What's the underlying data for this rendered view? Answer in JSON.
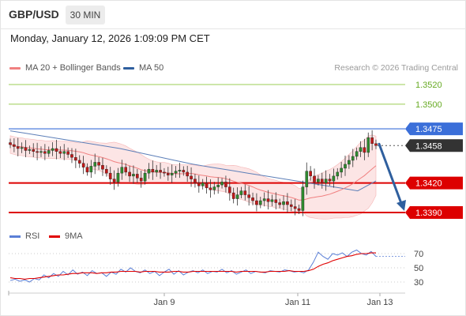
{
  "header": {
    "symbol": "GBP/USD",
    "timeframe": "30 MIN",
    "datetime": "Monday, January 12, 2026 1:09:09 PM CET",
    "credit": "Research © 2026 Trading Central"
  },
  "legend": {
    "ma20_label": "MA 20 + Bollinger Bands",
    "ma50_label": "MA 50",
    "ma20_color": "#f08080",
    "ma50_color": "#2f5f9e"
  },
  "rsi_legend": {
    "rsi_label": "RSI",
    "ma9_label": "9MA",
    "rsi_color": "#5b7fd6",
    "ma9_color": "#e00000"
  },
  "colors": {
    "resistance": "#66aa22",
    "pivot": "#3b6fd9",
    "support": "#dd0000",
    "current": "#333333",
    "arrow": "#2f5f9e",
    "bollinger_fill": "#fbdcdc"
  },
  "chart_data": {
    "type": "candlestick",
    "x_ticks": [
      "Jan 9",
      "Jan 11",
      "Jan 13"
    ],
    "levels": [
      {
        "name": "resistance-2",
        "value": 1.352,
        "label": "1.3520",
        "style": "resistance"
      },
      {
        "name": "resistance-1",
        "value": 1.35,
        "label": "1.3500",
        "style": "resistance"
      },
      {
        "name": "pivot",
        "value": 1.3475,
        "label": "1.3475",
        "style": "pivot"
      },
      {
        "name": "current-price",
        "value": 1.3458,
        "label": "1.3458",
        "style": "current"
      },
      {
        "name": "support-1",
        "value": 1.342,
        "label": "1.3420",
        "style": "support"
      },
      {
        "name": "support-2",
        "value": 1.339,
        "label": "1.3390",
        "style": "support"
      }
    ],
    "closes": [
      1.3459,
      1.3457,
      1.3455,
      1.3456,
      1.3453,
      1.3454,
      1.3452,
      1.3451,
      1.3452,
      1.345,
      1.3453,
      1.3455,
      1.3452,
      1.345,
      1.3452,
      1.3449,
      1.3446,
      1.3443,
      1.344,
      1.3436,
      1.3431,
      1.3437,
      1.3441,
      1.3438,
      1.3434,
      1.343,
      1.3424,
      1.3421,
      1.343,
      1.3436,
      1.3431,
      1.3427,
      1.3429,
      1.3425,
      1.3422,
      1.343,
      1.3434,
      1.3431,
      1.3433,
      1.3431,
      1.343,
      1.3428,
      1.343,
      1.3432,
      1.3433,
      1.3431,
      1.3427,
      1.3424,
      1.342,
      1.3417,
      1.342,
      1.3415,
      1.3413,
      1.3416,
      1.3418,
      1.3421,
      1.3416,
      1.341,
      1.3404,
      1.3408,
      1.3412,
      1.3408,
      1.3405,
      1.3402,
      1.3398,
      1.3402,
      1.3404,
      1.3401,
      1.3403,
      1.34,
      1.3398,
      1.3401,
      1.3398,
      1.3396,
      1.3394,
      1.3392,
      1.3416,
      1.3432,
      1.3427,
      1.3421,
      1.3424,
      1.342,
      1.3424,
      1.3422,
      1.3427,
      1.3431,
      1.3435,
      1.3439,
      1.3443,
      1.3447,
      1.3452,
      1.3456,
      1.3451,
      1.3466,
      1.346,
      1.3458
    ],
    "ma50": [
      1.3473,
      1.347,
      1.3467,
      1.3464,
      1.3461,
      1.3458,
      1.3455,
      1.3451,
      1.3447,
      1.3443,
      1.3439,
      1.3436,
      1.3433,
      1.343,
      1.3427,
      1.3424,
      1.3421,
      1.3418,
      1.3415,
      1.3412,
      1.3422
    ],
    "rsi": {
      "levels": [
        70,
        50,
        30
      ],
      "rsi": [
        32,
        34,
        31,
        33,
        30,
        35,
        33,
        40,
        36,
        42,
        38,
        45,
        40,
        47,
        41,
        44,
        39,
        46,
        42,
        43,
        38,
        44,
        41,
        48,
        44,
        50,
        45,
        43,
        47,
        42,
        45,
        39,
        44,
        48,
        41,
        46,
        40,
        44,
        46,
        43,
        47,
        42,
        45,
        44,
        48,
        43,
        46,
        41,
        44,
        47,
        42,
        45,
        44,
        43,
        46,
        45,
        44,
        47,
        46,
        44,
        45,
        43,
        47,
        58,
        72,
        66,
        62,
        70,
        68,
        71,
        66,
        72,
        75,
        70,
        68,
        73,
        66
      ],
      "ma9": [
        36,
        35,
        35,
        34,
        35,
        35,
        36,
        37,
        38,
        39,
        40,
        40,
        41,
        42,
        42,
        43,
        43,
        43,
        42,
        43,
        43,
        44,
        44,
        45,
        45,
        45,
        45,
        44,
        45,
        45,
        45,
        44,
        44,
        44,
        45,
        45,
        44,
        44,
        45,
        45,
        45,
        45,
        45,
        45,
        45,
        45,
        45,
        44,
        45,
        45,
        45,
        45,
        44,
        44,
        45,
        45,
        45,
        45,
        46,
        45,
        45,
        45,
        46,
        48,
        52,
        55,
        57,
        60,
        62,
        64,
        66,
        67,
        69,
        70,
        70,
        71,
        71
      ]
    }
  }
}
